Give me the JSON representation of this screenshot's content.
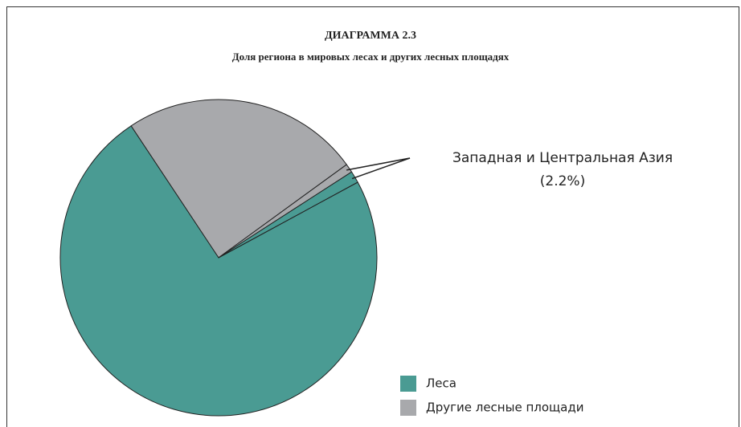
{
  "chart_data": {
    "type": "pie",
    "title": "ДИАГРАММА 2.3",
    "subtitle": "Доля региона в мировых лесах и других лесных площадях",
    "values": [
      73.6,
      24.3,
      0.9,
      1.2
    ],
    "colors": [
      "#4a9b93",
      "#a8a9ac",
      "#a8a9ac",
      "#4a9b93"
    ],
    "legend": [
      {
        "name": "Леса",
        "color": "#4a9b93"
      },
      {
        "name": "Другие лесные площади",
        "color": "#a8a9ac"
      }
    ],
    "legend_position": "lower right",
    "annotation": {
      "text": "Западная и Центральная Азия",
      "label": "(2.2%)"
    }
  }
}
